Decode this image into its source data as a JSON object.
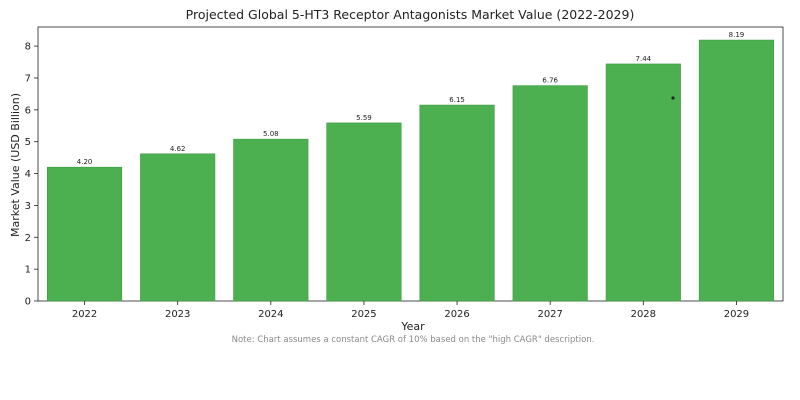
{
  "chart_data": {
    "type": "bar",
    "title": "Projected Global 5-HT3 Receptor Antagonists Market Value (2022-2029)",
    "xlabel": "Year",
    "ylabel": "Market Value (USD Billion)",
    "categories": [
      "2022",
      "2023",
      "2024",
      "2025",
      "2026",
      "2027",
      "2028",
      "2029"
    ],
    "values": [
      4.2,
      4.62,
      5.08,
      5.59,
      6.15,
      6.76,
      7.44,
      8.19
    ],
    "value_labels": [
      "4.20",
      "4.62",
      "5.08",
      "5.59",
      "6.15",
      "6.76",
      "7.44",
      "8.19"
    ],
    "ylim": [
      0,
      8.6
    ],
    "yticks": [
      "0",
      "1",
      "2",
      "3",
      "4",
      "5",
      "6",
      "7",
      "8"
    ],
    "grid": false,
    "legend": "none",
    "bar_color": "#4caf50",
    "bar_edge_color": "#3e9a43",
    "note": "Note: Chart assumes a constant CAGR of 10% based on the \"high CAGR\" description."
  }
}
